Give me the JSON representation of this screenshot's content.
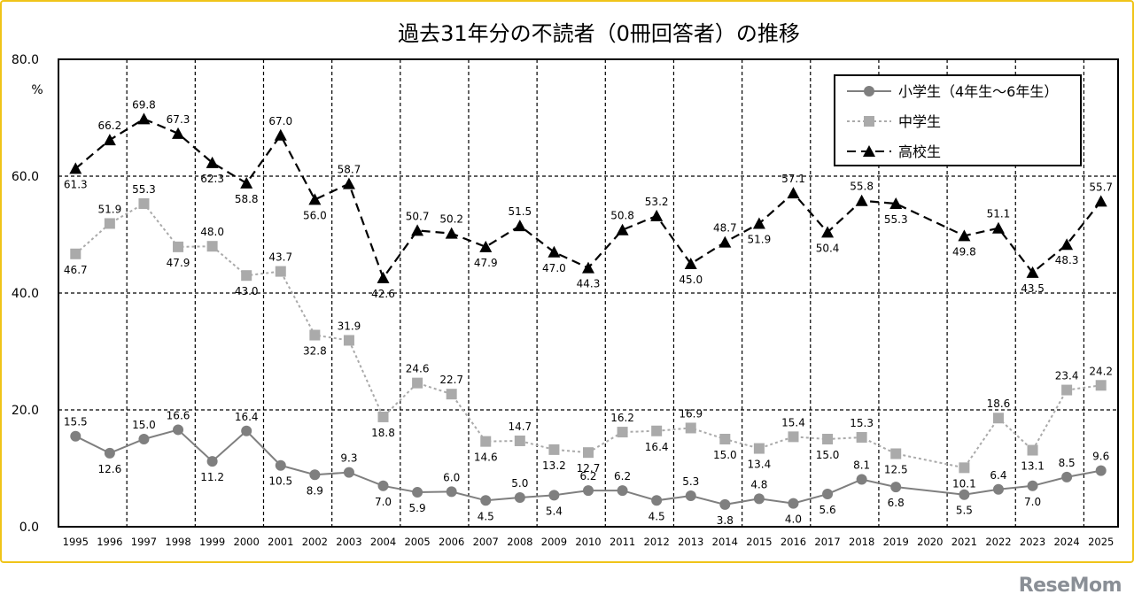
{
  "brand": {
    "text": "ReseMom"
  },
  "chart_data": {
    "type": "line",
    "title": "過去31年分の不読者（0冊回答者）の推移",
    "ylabel": "%",
    "ylim": [
      0,
      80
    ],
    "yticks": [
      "0.0",
      "20.0",
      "40.0",
      "60.0",
      "80.0"
    ],
    "grid": true,
    "legend_position": "top-right",
    "x": [
      "1995",
      "1996",
      "1997",
      "1998",
      "1999",
      "2000",
      "2001",
      "2002",
      "2003",
      "2004",
      "2005",
      "2006",
      "2007",
      "2008",
      "2009",
      "2010",
      "2011",
      "2012",
      "2013",
      "2014",
      "2015",
      "2016",
      "2017",
      "2018",
      "2019",
      "2020",
      "2021",
      "2022",
      "2023",
      "2024",
      "2025"
    ],
    "series": [
      {
        "name": "小学生（4年生～6年生）",
        "color": "#7f7f7f",
        "marker": "circle",
        "dash": "solid",
        "values": [
          15.5,
          12.6,
          15.0,
          16.6,
          11.2,
          16.4,
          10.5,
          8.9,
          9.3,
          7.0,
          5.9,
          6.0,
          4.5,
          5.0,
          5.4,
          6.2,
          6.2,
          4.5,
          5.3,
          3.8,
          4.8,
          4.0,
          5.6,
          8.1,
          6.8,
          null,
          5.5,
          6.4,
          7.0,
          8.5,
          9.6
        ],
        "labels": [
          "15.5",
          "12.6",
          "15.0",
          "16.6",
          "11.2",
          "16.4",
          "10.5",
          "8.9",
          "9.3",
          "7.0",
          "5.9",
          "6.0",
          "4.5",
          "5.0",
          "5.4",
          "6.2",
          "6.2",
          "4.5",
          "5.3",
          "3.8",
          "4.8",
          "4.0",
          "5.6",
          "8.1",
          "6.8",
          "",
          "5.5",
          "6.4",
          "7.0",
          "8.5",
          "9.6"
        ]
      },
      {
        "name": "中学生",
        "color": "#aaaaaa",
        "marker": "square",
        "dash": "dotted",
        "values": [
          46.7,
          51.9,
          55.3,
          47.9,
          48.0,
          43.0,
          43.7,
          32.8,
          31.9,
          18.8,
          24.6,
          22.7,
          14.6,
          14.7,
          13.2,
          12.7,
          16.2,
          16.4,
          16.9,
          15.0,
          13.4,
          15.4,
          15.0,
          15.3,
          12.5,
          null,
          10.1,
          18.6,
          13.1,
          23.4,
          24.2
        ],
        "labels": [
          "46.7",
          "51.9",
          "55.3",
          "47.9",
          "48.0",
          "43.0",
          "43.7",
          "32.8",
          "31.9",
          "18.8",
          "24.6",
          "22.7",
          "14.6",
          "14.7",
          "13.2",
          "12.7",
          "16.2",
          "16.4",
          "16.9",
          "15.0",
          "13.4",
          "15.4",
          "15.0",
          "15.3",
          "12.5",
          "",
          "10.1",
          "18.6",
          "13.1",
          "23.4",
          "24.2"
        ]
      },
      {
        "name": "高校生",
        "color": "#000000",
        "marker": "triangle",
        "dash": "dashed",
        "values": [
          61.3,
          66.2,
          69.8,
          67.3,
          62.3,
          58.8,
          67.0,
          56.0,
          58.7,
          42.6,
          50.7,
          50.2,
          47.9,
          51.5,
          47.0,
          44.3,
          50.8,
          53.2,
          45.0,
          48.7,
          51.9,
          57.1,
          50.4,
          55.8,
          55.3,
          null,
          49.8,
          51.1,
          43.5,
          48.3,
          55.7
        ],
        "labels": [
          "61.3",
          "66.2",
          "69.8",
          "67.3",
          "62.3",
          "58.8",
          "67.0",
          "56.0",
          "58.7",
          "42.6",
          "50.7",
          "50.2",
          "47.9",
          "51.5",
          "47.0",
          "44.3",
          "50.8",
          "53.2",
          "45.0",
          "48.7",
          "51.9",
          "57.1",
          "50.4",
          "55.8",
          "55.3",
          "",
          "49.8",
          "51.1",
          "43.5",
          "48.3",
          "55.7"
        ]
      }
    ]
  }
}
